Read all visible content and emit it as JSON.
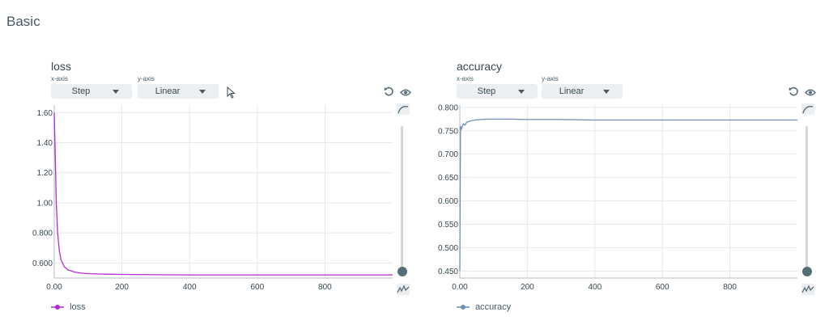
{
  "section": {
    "title": "Basic"
  },
  "charts": [
    {
      "title": "loss",
      "xaxis_caption": "x-axis",
      "yaxis_caption": "y-axis",
      "xaxis_value": "Step",
      "yaxis_value": "Linear",
      "legend": "loss",
      "color": "#b32ad4"
    },
    {
      "title": "accuracy",
      "xaxis_caption": "x-axis",
      "yaxis_caption": "y-axis",
      "xaxis_value": "Step",
      "yaxis_value": "Linear",
      "legend": "accuracy",
      "color": "#6f8fb8"
    }
  ],
  "icons": [
    "undo-icon",
    "eye-icon",
    "smoothing-icon",
    "raw-data-icon",
    "cursor-icon"
  ],
  "chart_data": [
    {
      "type": "line",
      "title": "loss",
      "xlabel": "",
      "ylabel": "",
      "xlim": [
        0,
        1000
      ],
      "ylim": [
        0.5,
        1.65
      ],
      "xticks": [
        "0.00",
        "200",
        "400",
        "600",
        "800"
      ],
      "yticks": [
        "0.600",
        "0.800",
        "1.00",
        "1.20",
        "1.40",
        "1.60"
      ],
      "grid": true,
      "legend_position": "bottom-left",
      "series": [
        {
          "name": "loss",
          "x": [
            0,
            3,
            6,
            10,
            15,
            20,
            30,
            40,
            60,
            80,
            100,
            150,
            200,
            300,
            400,
            600,
            800,
            1000
          ],
          "y": [
            1.6,
            1.3,
            1.0,
            0.8,
            0.68,
            0.62,
            0.575,
            0.555,
            0.54,
            0.533,
            0.529,
            0.526,
            0.524,
            0.522,
            0.521,
            0.521,
            0.521,
            0.521
          ]
        }
      ]
    },
    {
      "type": "line",
      "title": "accuracy",
      "xlabel": "",
      "ylabel": "",
      "xlim": [
        0,
        1000
      ],
      "ylim": [
        0.435,
        0.805
      ],
      "xticks": [
        "0.00",
        "200",
        "400",
        "600",
        "800"
      ],
      "yticks": [
        "0.450",
        "0.500",
        "0.550",
        "0.600",
        "0.650",
        "0.700",
        "0.750",
        "0.800"
      ],
      "grid": true,
      "legend_position": "bottom-left",
      "series": [
        {
          "name": "accuracy",
          "x": [
            0,
            2,
            5,
            10,
            15,
            20,
            30,
            45,
            60,
            80,
            100,
            150,
            200,
            300,
            400,
            600,
            800,
            1000
          ],
          "y": [
            0.45,
            0.76,
            0.754,
            0.765,
            0.762,
            0.768,
            0.771,
            0.773,
            0.774,
            0.775,
            0.775,
            0.775,
            0.774,
            0.774,
            0.773,
            0.773,
            0.773,
            0.773
          ]
        }
      ]
    }
  ]
}
